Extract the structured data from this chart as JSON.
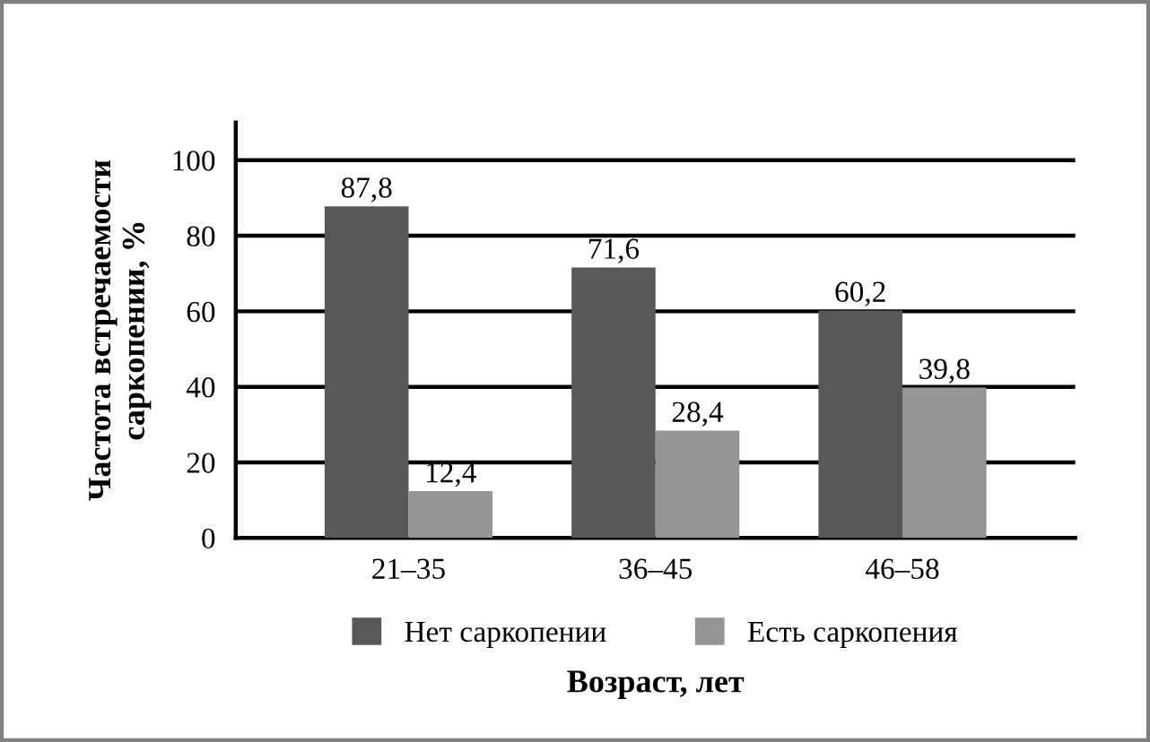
{
  "chart_data": {
    "type": "bar",
    "ylabel": "Частота встречаемости\nсаркопении, %",
    "xlabel": "Возраст, лет",
    "categories": [
      "21–35",
      "36–45",
      "46–58"
    ],
    "series": [
      {
        "name": "Нет саркопении",
        "color": "#58585a",
        "values": [
          87.8,
          71.6,
          60.2
        ],
        "value_labels": [
          "87,8",
          "71,6",
          "60,2"
        ]
      },
      {
        "name": "Есть саркопения",
        "color": "#959597",
        "values": [
          12.4,
          28.4,
          39.8
        ],
        "value_labels": [
          "12,4",
          "28,4",
          "39,8"
        ]
      }
    ],
    "ylim": [
      0,
      110
    ],
    "yticks": [
      0,
      20,
      40,
      60,
      80,
      100
    ],
    "grid": "y",
    "legend": "bottom"
  }
}
